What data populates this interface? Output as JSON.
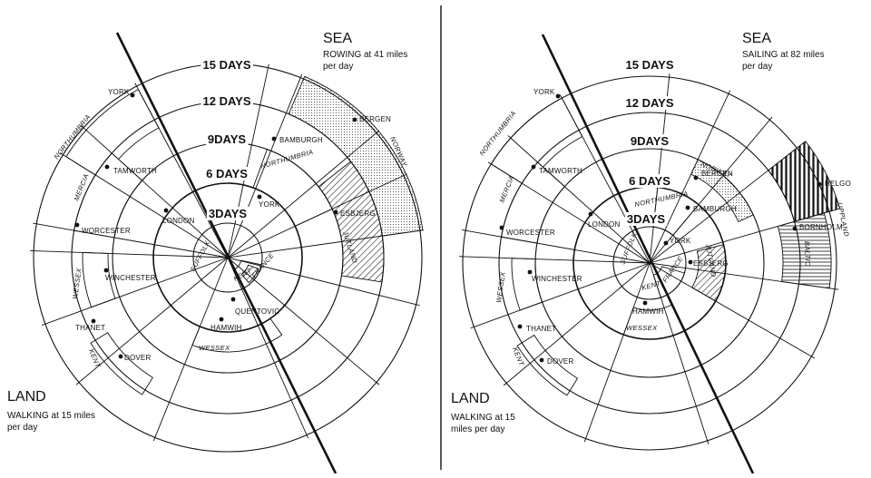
{
  "panels": [
    {
      "sea_title": "SEA",
      "sea_line1": "ROWING at 41 miles",
      "sea_line2": "per day",
      "land_title": "LAND",
      "land_line1": "WALKING at 15 miles",
      "land_line2": "per day",
      "rings": [
        "3DAYS",
        "6 DAYS",
        "9DAYS",
        "12 DAYS",
        "15 DAYS"
      ],
      "places": [
        "YORK",
        "TAMWORTH",
        "LONDON",
        "WORCESTER",
        "WINCHESTER",
        "THANET",
        "DOVER",
        "BAMBURGH",
        "YORK",
        "BERGEN",
        "ESBJERG",
        "HAMWIH",
        "QUENTOVIC"
      ],
      "regions": [
        "NORTHUMBRIA",
        "MERCIA",
        "WESSEX",
        "KENT",
        "SUFFOLK",
        "NORTHUMBRIA",
        "NORWAY",
        "JUTLAND",
        "KENT",
        "FRANCE",
        "WESSEX"
      ]
    },
    {
      "sea_title": "SEA",
      "sea_line1": "SAILING at 82 miles",
      "sea_line2": "per day",
      "land_title": "LAND",
      "land_line1": "WALKING at 15",
      "land_line2": "miles per day",
      "rings": [
        "3DAYS",
        "6 DAYS",
        "9DAYS",
        "12 DAYS",
        "15 DAYS"
      ],
      "places": [
        "YORK",
        "TAMWORTH",
        "LONDON",
        "WORCESTER",
        "WINCHESTER",
        "THANET",
        "DOVER",
        "BERGEN",
        "BAMBURGH",
        "YORK",
        "ESBJERG",
        "HELGO",
        "BORNHOLM",
        "HAMWIH"
      ],
      "regions": [
        "NORTHUMBRIA",
        "MERCIA",
        "WESSEX",
        "KENT",
        "SUFFOLK",
        "NORWAY",
        "NORTHUMBRIA",
        "JUTLAND",
        "KENT",
        "FRANCE",
        "WESSEX",
        "UPPLAND",
        "BALTIC"
      ]
    }
  ]
}
